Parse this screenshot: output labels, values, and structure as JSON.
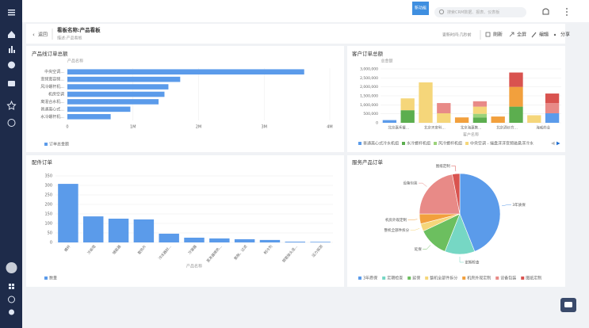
{
  "topbar": {
    "badge": "新功能",
    "search_placeholder": "搜索CRM数据、报表、仪表板"
  },
  "header": {
    "back": "返回",
    "title": "看板名称:产品看板",
    "description": "描述:产品看板",
    "updated": "更新时间:几秒前",
    "actions": [
      "刷新",
      "全屏",
      "编辑",
      "分享"
    ]
  },
  "chart_data": [
    {
      "type": "hbar",
      "title": "产品线订单总额",
      "y_label": "产品名称",
      "categories": [
        "中央空调...",
        "变频宽容频...",
        "风冷螺杆机...",
        "机房空调",
        "离混合水机...",
        "普通离心式...",
        "水冷螺杆机..."
      ],
      "series": [
        {
          "name": "订单总金额",
          "color": "#5b9bea",
          "values": [
            3610000,
            1720000,
            1540000,
            1480000,
            1390000,
            960000,
            660000
          ]
        }
      ],
      "xlim": [
        0,
        4000000
      ],
      "xticks": [
        0,
        {
          "value": 1000000,
          "label": "1M"
        },
        {
          "value": 2000000,
          "label": "2M"
        },
        {
          "value": 3000000,
          "label": "3M"
        },
        {
          "value": 4000000,
          "label": "4M"
        }
      ],
      "grid": true
    },
    {
      "type": "stacked_bar",
      "title": "客户订单总额",
      "y_label": "总金额",
      "x_label": "客户名称",
      "categories": [
        "北京嘉禾餐...",
        null,
        "北京天安科...",
        null,
        "北京海嘉集...",
        null,
        "北京酒炒方...",
        null,
        "海威药业",
        null
      ],
      "series": [
        {
          "name": "普通离心式冷水机组",
          "color": "#5b9bea",
          "values": [
            150000,
            null,
            null,
            null,
            null,
            null,
            null,
            null,
            null,
            530000
          ]
        },
        {
          "name": "水冷螺杆机组",
          "color": "#5cae4f",
          "values": [
            null,
            700000,
            null,
            null,
            null,
            300000,
            null,
            900000,
            null,
            null
          ]
        },
        {
          "name": "风冷螺杆机组",
          "color": "#9bd27a",
          "values": [
            null,
            null,
            null,
            null,
            null,
            200000,
            null,
            null,
            null,
            null
          ]
        },
        {
          "name": "中央空调 - 端盘浮浮变频磁悬浮冷水",
          "color": "#f5d67a",
          "values": [
            null,
            660000,
            2250000,
            530000,
            null,
            400000,
            null,
            null,
            420000,
            null
          ]
        },
        {
          "color": "#e88a87",
          "values": [
            null,
            null,
            null,
            570000,
            null,
            300000,
            null,
            null,
            null,
            570000
          ]
        },
        {
          "color": "#f2a03d",
          "values": [
            null,
            null,
            null,
            null,
            300000,
            null,
            350000,
            1100000,
            null,
            null
          ]
        },
        {
          "color": "#d9534f",
          "values": [
            null,
            null,
            null,
            null,
            null,
            null,
            null,
            800000,
            null,
            530000
          ]
        }
      ],
      "ylim": [
        0,
        3000000
      ],
      "yticks": [
        0,
        {
          "value": 500000,
          "label": "500,000"
        },
        {
          "value": 1000000,
          "label": "1,000,000"
        },
        {
          "value": 1500000,
          "label": "1,500,000"
        },
        {
          "value": 2000000,
          "label": "2,000,000"
        },
        {
          "value": 2500000,
          "label": "2,500,000"
        },
        {
          "value": 3000000,
          "label": "3,000,000"
        }
      ],
      "grid": true
    },
    {
      "type": "bar",
      "title": "配件订单",
      "x_label": "产品名称",
      "categories": [
        "螺杆",
        "冷却塔",
        "储能器",
        "散热片",
        "冷冻器封...",
        "冷凝器",
        "蒸发器换热...",
        "膨胀、过滤",
        "制冷剂",
        "铜管接头连...",
        "压力探测"
      ],
      "series": [
        {
          "name": "数量",
          "color": "#5b9bea",
          "values": [
            308,
            137,
            125,
            121,
            46,
            25,
            21,
            17,
            13,
            4,
            3
          ]
        }
      ],
      "ylim": [
        0,
        350
      ],
      "yticks": [
        0,
        50,
        100,
        150,
        200,
        250,
        300,
        350
      ],
      "grid": true
    },
    {
      "type": "pie",
      "title": "服务产品订单",
      "categories": [
        "3年质保",
        "定期检查",
        "延保",
        "整机全部件拆分",
        "机房外观定制",
        "设备包装",
        "图纸定制"
      ],
      "values": [
        44,
        12,
        12,
        3,
        4,
        22,
        3
      ],
      "colors": [
        "#5b9bea",
        "#76d7c4",
        "#6cbf5f",
        "#f5d67a",
        "#f2a03d",
        "#e88a87",
        "#d9534f"
      ]
    }
  ]
}
